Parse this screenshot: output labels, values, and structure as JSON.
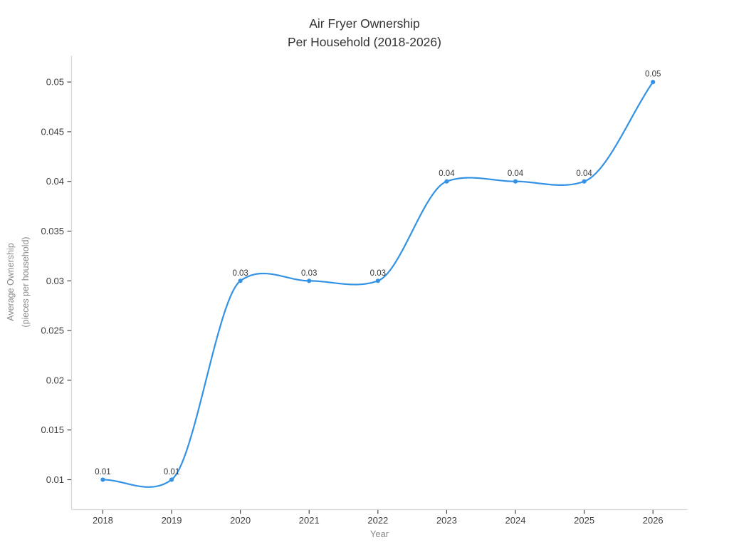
{
  "chart_data": {
    "type": "line",
    "title": "Air Fryer Ownership Per Household (2018-2026)",
    "title_lines": [
      "Air Fryer Ownership",
      "Per Household (2018-2026)"
    ],
    "xlabel": "Year",
    "ylabel": "Average Ownership (pieces per household)",
    "ylabel_lines": [
      "Average Ownership",
      "(pieces per household)"
    ],
    "x": [
      2018,
      2019,
      2020,
      2021,
      2022,
      2023,
      2024,
      2025,
      2026
    ],
    "values": [
      0.01,
      0.01,
      0.03,
      0.03,
      0.03,
      0.04,
      0.04,
      0.04,
      0.05
    ],
    "point_labels": [
      "0.01",
      "0.01",
      "0.03",
      "0.03",
      "0.03",
      "0.04",
      "0.04",
      "0.04",
      "0.05"
    ],
    "xticks": [
      2018,
      2019,
      2020,
      2021,
      2022,
      2023,
      2024,
      2025,
      2026
    ],
    "xtick_labels": [
      "2018",
      "2019",
      "2020",
      "2021",
      "2022",
      "2023",
      "2024",
      "2025",
      "2026"
    ],
    "yticks": [
      0.01,
      0.015,
      0.02,
      0.025,
      0.03,
      0.035,
      0.04,
      0.045,
      0.05
    ],
    "ytick_labels": [
      "0.01",
      "0.015",
      "0.02",
      "0.025",
      "0.03",
      "0.035",
      "0.04",
      "0.045",
      "0.05"
    ],
    "xlim": [
      2017.545,
      2026.5
    ],
    "ylim": [
      0.00699,
      0.05266
    ],
    "grid": false,
    "legend": "none",
    "line_shape": "spline",
    "marker": "circle",
    "colors": {
      "line": "#3492e4",
      "marker": "#3492e4",
      "title": "#333333",
      "tick_label": "#3d3d3d",
      "axis_title": "#8b8b8b",
      "spine": "#d8d8d8",
      "tick": "#4a4a4a",
      "point_label": "#363636",
      "background": "#ffffff"
    }
  }
}
